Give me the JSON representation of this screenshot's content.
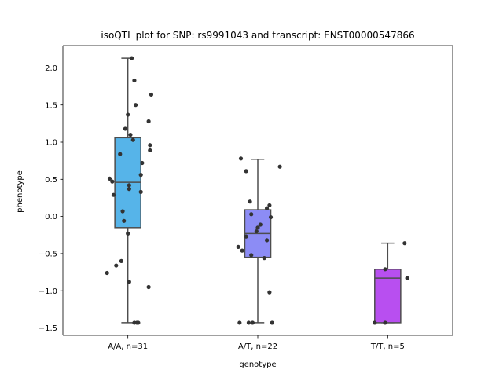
{
  "chart_data": {
    "type": "box",
    "title": "isoQTL plot for SNP: rs9991043 and transcript: ENST00000547866",
    "xlabel": "genotype",
    "ylabel": "phenotype",
    "ylim": [
      -1.6,
      2.3
    ],
    "yticks": [
      -1.5,
      -1.0,
      -0.5,
      0.0,
      0.5,
      1.0,
      1.5,
      2.0
    ],
    "ytick_labels": [
      "−1.5",
      "−1.0",
      "−0.5",
      "0.0",
      "0.5",
      "1.0",
      "1.5",
      "2.0"
    ],
    "categories": [
      "A/A, n=31",
      "A/T, n=22",
      "T/T, n=5"
    ],
    "colors": [
      "#56b4e9",
      "#8c8cf5",
      "#b84ff0"
    ],
    "point_color": "#333333",
    "box_edge_color": "#4d4d4d",
    "boxes": [
      {
        "q1": -0.15,
        "median": 0.46,
        "q3": 1.06,
        "whisker_low": -1.43,
        "whisker_high": 2.13
      },
      {
        "q1": -0.55,
        "median": -0.23,
        "q3": 0.09,
        "whisker_low": -1.43,
        "whisker_high": 0.77
      },
      {
        "q1": -1.43,
        "median": -0.83,
        "q3": -0.71,
        "whisker_low": -1.43,
        "whisker_high": -0.36
      }
    ],
    "points": [
      [
        {
          "x": 0.03,
          "y": 2.13
        },
        {
          "x": 0.05,
          "y": 1.83
        },
        {
          "x": 0.18,
          "y": 1.64
        },
        {
          "x": 0.06,
          "y": 1.5
        },
        {
          "x": 0.0,
          "y": 1.37
        },
        {
          "x": 0.16,
          "y": 1.28
        },
        {
          "x": -0.02,
          "y": 1.18
        },
        {
          "x": 0.02,
          "y": 1.1
        },
        {
          "x": 0.04,
          "y": 1.03
        },
        {
          "x": 0.17,
          "y": 0.96
        },
        {
          "x": 0.17,
          "y": 0.89
        },
        {
          "x": -0.06,
          "y": 0.84
        },
        {
          "x": 0.11,
          "y": 0.72
        },
        {
          "x": 0.1,
          "y": 0.56
        },
        {
          "x": -0.14,
          "y": 0.51
        },
        {
          "x": -0.12,
          "y": 0.47
        },
        {
          "x": 0.01,
          "y": 0.42
        },
        {
          "x": 0.01,
          "y": 0.37
        },
        {
          "x": 0.1,
          "y": 0.33
        },
        {
          "x": -0.11,
          "y": 0.29
        },
        {
          "x": -0.04,
          "y": 0.07
        },
        {
          "x": -0.03,
          "y": -0.06
        },
        {
          "x": 0.0,
          "y": -0.23
        },
        {
          "x": -0.05,
          "y": -0.6
        },
        {
          "x": -0.09,
          "y": -0.66
        },
        {
          "x": -0.16,
          "y": -0.76
        },
        {
          "x": 0.01,
          "y": -0.88
        },
        {
          "x": 0.16,
          "y": -0.95
        },
        {
          "x": 0.05,
          "y": -1.43
        },
        {
          "x": 0.07,
          "y": -1.43
        },
        {
          "x": 0.08,
          "y": -1.43
        }
      ],
      [
        {
          "x": -0.13,
          "y": 0.78
        },
        {
          "x": 0.17,
          "y": 0.67
        },
        {
          "x": -0.09,
          "y": 0.61
        },
        {
          "x": -0.06,
          "y": 0.2
        },
        {
          "x": 0.09,
          "y": 0.15
        },
        {
          "x": 0.07,
          "y": 0.11
        },
        {
          "x": -0.05,
          "y": 0.03
        },
        {
          "x": 0.1,
          "y": -0.01
        },
        {
          "x": 0.02,
          "y": -0.11
        },
        {
          "x": 0.0,
          "y": -0.15
        },
        {
          "x": -0.01,
          "y": -0.2
        },
        {
          "x": -0.09,
          "y": -0.27
        },
        {
          "x": 0.07,
          "y": -0.32
        },
        {
          "x": -0.15,
          "y": -0.41
        },
        {
          "x": -0.12,
          "y": -0.46
        },
        {
          "x": -0.05,
          "y": -0.52
        },
        {
          "x": 0.05,
          "y": -0.56
        },
        {
          "x": 0.09,
          "y": -1.02
        },
        {
          "x": -0.14,
          "y": -1.43
        },
        {
          "x": -0.07,
          "y": -1.43
        },
        {
          "x": -0.04,
          "y": -1.43
        },
        {
          "x": 0.11,
          "y": -1.43
        }
      ],
      [
        {
          "x": 0.13,
          "y": -0.36
        },
        {
          "x": -0.02,
          "y": -0.71
        },
        {
          "x": 0.15,
          "y": -0.83
        },
        {
          "x": -0.1,
          "y": -1.43
        },
        {
          "x": -0.02,
          "y": -1.43
        }
      ]
    ]
  }
}
